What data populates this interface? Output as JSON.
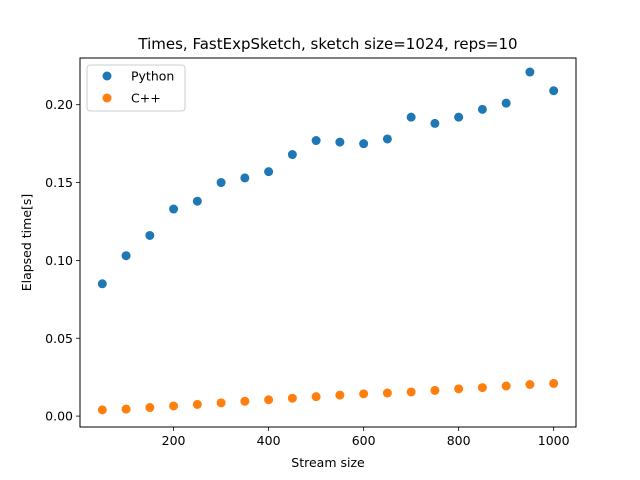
{
  "chart_data": {
    "type": "scatter",
    "title": "Times, FastExpSketch, sketch size=1024, reps=10",
    "xlabel": "Stream size",
    "ylabel": "Elapsed time[s]",
    "xlim": [
      3,
      1047
    ],
    "ylim": [
      -0.007,
      0.23
    ],
    "xticks": [
      200,
      400,
      600,
      800,
      1000
    ],
    "xtick_labels": [
      "200",
      "400",
      "600",
      "800",
      "1000"
    ],
    "yticks": [
      0.0,
      0.05,
      0.1,
      0.15,
      0.2
    ],
    "ytick_labels": [
      "0.00",
      "0.05",
      "0.10",
      "0.15",
      "0.20"
    ],
    "grid": false,
    "legend_position": "top-left",
    "x": [
      50,
      100,
      150,
      200,
      250,
      300,
      350,
      400,
      450,
      500,
      550,
      600,
      650,
      700,
      750,
      800,
      850,
      900,
      950,
      1000
    ],
    "series": [
      {
        "name": "Python",
        "color": "#1f77b4",
        "values": [
          0.085,
          0.103,
          0.116,
          0.133,
          0.138,
          0.15,
          0.153,
          0.157,
          0.168,
          0.177,
          0.176,
          0.175,
          0.178,
          0.192,
          0.188,
          0.192,
          0.197,
          0.201,
          0.221,
          0.209
        ]
      },
      {
        "name": "C++",
        "color": "#ff7f0e",
        "values": [
          0.004,
          0.0045,
          0.0055,
          0.0065,
          0.0075,
          0.0085,
          0.0095,
          0.0105,
          0.0115,
          0.0125,
          0.0135,
          0.0143,
          0.0148,
          0.0155,
          0.0165,
          0.0175,
          0.0183,
          0.0193,
          0.0203,
          0.021
        ]
      }
    ]
  }
}
